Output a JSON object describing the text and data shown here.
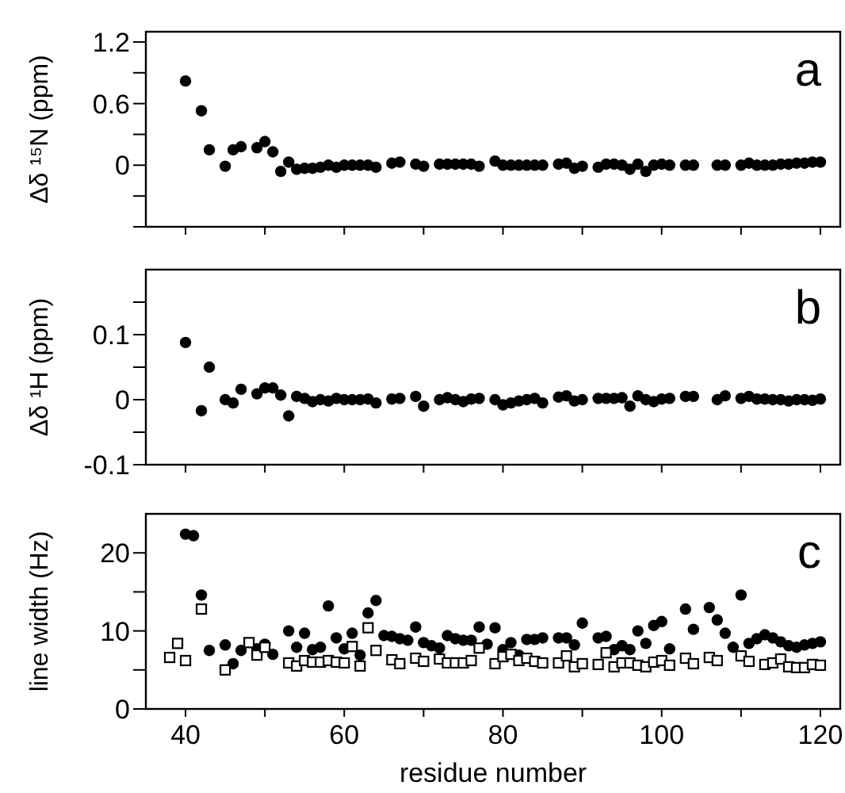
{
  "chart_data": [
    {
      "type": "scatter",
      "ylabel": "Δδ ¹⁵N (ppm)",
      "annotations": [
        "a"
      ],
      "xlim": [
        35,
        122.5
      ],
      "xticks": [
        {
          "value": 40,
          "label": null
        },
        {
          "value": 50,
          "label": null
        },
        {
          "value": 60,
          "label": null
        },
        {
          "value": 70,
          "label": null
        },
        {
          "value": 80,
          "label": null
        },
        {
          "value": 90,
          "label": null
        },
        {
          "value": 100,
          "label": null
        },
        {
          "value": 110,
          "label": null
        },
        {
          "value": 120,
          "label": null
        }
      ],
      "ylim": [
        -0.6,
        1.3
      ],
      "yticks": [
        {
          "value": -0.6,
          "label": null
        },
        {
          "value": -0.3,
          "label": null
        },
        0,
        {
          "value": 0.3,
          "label": null
        },
        0.6,
        {
          "value": 0.9,
          "label": null
        },
        1.2
      ],
      "tick_labels": "y",
      "marker": "circle",
      "series": [
        {
          "color": "#000000",
          "x": [
            40,
            42,
            43,
            45,
            46,
            47,
            49,
            50,
            51,
            52,
            53,
            54,
            55,
            56,
            57,
            58,
            59,
            60,
            61,
            62,
            63,
            64,
            66,
            67,
            69,
            70,
            72,
            73,
            74,
            75,
            76,
            77,
            79,
            80,
            81,
            82,
            83,
            84,
            85,
            87,
            88,
            89,
            90,
            92,
            93,
            94,
            95,
            96,
            97,
            98,
            99,
            100,
            101,
            103,
            104,
            107,
            108,
            110,
            111,
            112,
            113,
            114,
            115,
            116,
            117,
            118,
            119,
            120
          ],
          "values": [
            0.82,
            0.53,
            0.15,
            -0.01,
            0.15,
            0.18,
            0.17,
            0.23,
            0.13,
            -0.06,
            0.03,
            -0.04,
            -0.03,
            -0.03,
            -0.02,
            0,
            -0.02,
            0,
            0,
            0,
            0,
            -0.02,
            0.02,
            0.03,
            0.01,
            -0.01,
            0.01,
            0.01,
            0.01,
            0.01,
            0.01,
            -0.01,
            0.04,
            0,
            0,
            0,
            0,
            0,
            0,
            0.01,
            0.02,
            -0.03,
            -0.01,
            -0.02,
            0.01,
            0.01,
            0,
            -0.04,
            0.01,
            -0.06,
            0,
            0.01,
            0,
            0,
            0,
            0,
            0,
            0,
            0.02,
            0,
            0,
            0,
            0.01,
            0.01,
            0.02,
            0.02,
            0.03,
            0.03
          ]
        }
      ]
    },
    {
      "type": "scatter",
      "ylabel": "Δδ ¹H (ppm)",
      "annotations": [
        "b"
      ],
      "xlim": [
        35,
        122.5
      ],
      "xticks": [
        {
          "value": 40,
          "label": null
        },
        {
          "value": 50,
          "label": null
        },
        {
          "value": 60,
          "label": null
        },
        {
          "value": 70,
          "label": null
        },
        {
          "value": 80,
          "label": null
        },
        {
          "value": 90,
          "label": null
        },
        {
          "value": 100,
          "label": null
        },
        {
          "value": 110,
          "label": null
        },
        {
          "value": 120,
          "label": null
        }
      ],
      "ylim": [
        -0.1,
        0.2
      ],
      "yticks": [
        -0.1,
        {
          "value": -0.05,
          "label": null
        },
        0,
        {
          "value": 0.05,
          "label": null
        },
        0.1,
        {
          "value": 0.15,
          "label": null
        }
      ],
      "tick_labels": "y",
      "marker": "circle",
      "series": [
        {
          "color": "#000000",
          "x": [
            40,
            42,
            43,
            45,
            46,
            47,
            49,
            50,
            51,
            52,
            53,
            54,
            55,
            56,
            57,
            58,
            59,
            60,
            61,
            62,
            63,
            64,
            66,
            67,
            69,
            70,
            72,
            73,
            74,
            75,
            76,
            77,
            79,
            80,
            81,
            82,
            83,
            84,
            85,
            87,
            88,
            89,
            90,
            92,
            93,
            94,
            95,
            96,
            97,
            98,
            99,
            100,
            101,
            103,
            104,
            107,
            108,
            110,
            111,
            112,
            113,
            114,
            115,
            116,
            117,
            118,
            119,
            120
          ],
          "values": [
            0.088,
            -0.017,
            0.05,
            0,
            -0.005,
            0.016,
            0.009,
            0.018,
            0.018,
            0.007,
            -0.025,
            0.005,
            0.002,
            -0.003,
            0,
            -0.002,
            0.002,
            0,
            0,
            0,
            0.001,
            -0.005,
            0.001,
            0.002,
            0.005,
            -0.01,
            0,
            0.003,
            0,
            -0.003,
            0.001,
            0.002,
            0,
            -0.008,
            -0.005,
            -0.002,
            0,
            0.002,
            -0.005,
            0.004,
            0.006,
            -0.002,
            0,
            0.002,
            0.002,
            0.002,
            0.003,
            -0.01,
            0.006,
            0,
            -0.003,
            0.001,
            0.002,
            0.005,
            0.005,
            0,
            0.006,
            0.002,
            0.005,
            0.001,
            0.001,
            0,
            0,
            -0.002,
            0,
            0,
            -0.001,
            0.001
          ]
        }
      ]
    },
    {
      "type": "scatter",
      "xlabel": "residue number",
      "ylabel": "line width (Hz)",
      "annotations": [
        "c"
      ],
      "xlim": [
        35,
        122.5
      ],
      "xticks": [
        40,
        {
          "value": 50,
          "label": null
        },
        60,
        {
          "value": 70,
          "label": null
        },
        80,
        {
          "value": 90,
          "label": null
        },
        100,
        {
          "value": 110,
          "label": null
        },
        120
      ],
      "ylim": [
        0,
        25
      ],
      "yticks": [
        0,
        {
          "value": 5,
          "label": null
        },
        10,
        {
          "value": 15,
          "label": null
        },
        20
      ],
      "series": [
        {
          "color": "#000000",
          "marker": "circle",
          "x": [
            40,
            41,
            42,
            43,
            45,
            46,
            47,
            49,
            50,
            51,
            53,
            54,
            55,
            56,
            57,
            58,
            59,
            60,
            61,
            62,
            63,
            64,
            65,
            66,
            67,
            68,
            69,
            70,
            71,
            72,
            73,
            74,
            75,
            76,
            77,
            78,
            79,
            80,
            81,
            82,
            83,
            84,
            85,
            87,
            88,
            89,
            90,
            92,
            93,
            94,
            95,
            96,
            97,
            98,
            99,
            100,
            101,
            103,
            104,
            106,
            107,
            108,
            109,
            110,
            111,
            112,
            113,
            114,
            115,
            116,
            117,
            118,
            119,
            120
          ],
          "values": [
            22.4,
            22.2,
            14.6,
            7.5,
            8.2,
            5.8,
            7.5,
            7.7,
            8.3,
            7.0,
            10.0,
            7.9,
            9.7,
            7.6,
            7.9,
            13.2,
            9.1,
            7.7,
            9.7,
            6.9,
            12.3,
            13.9,
            9.4,
            9.3,
            9.0,
            8.8,
            10.5,
            8.5,
            8.1,
            7.8,
            9.4,
            9.0,
            8.8,
            8.8,
            10.5,
            8.3,
            10.4,
            7.6,
            8.5,
            6.9,
            8.9,
            8.9,
            9.1,
            9.1,
            9.1,
            8.2,
            11.0,
            9.1,
            9.3,
            7.6,
            8.1,
            7.6,
            10.0,
            8.4,
            10.7,
            11.2,
            7.7,
            12.8,
            10.2,
            13.0,
            11.4,
            9.7,
            7.9,
            14.6,
            8.4,
            9.0,
            9.5,
            9.1,
            8.6,
            8.1,
            7.9,
            8.2,
            8.4,
            8.6
          ]
        },
        {
          "color": "#000000",
          "marker": "square",
          "x": [
            38,
            39,
            40,
            42,
            45,
            48,
            49,
            50,
            53,
            54,
            55,
            56,
            57,
            58,
            59,
            60,
            61,
            62,
            63,
            64,
            66,
            67,
            69,
            70,
            72,
            73,
            74,
            75,
            76,
            77,
            79,
            80,
            81,
            82,
            83,
            84,
            85,
            87,
            88,
            89,
            90,
            92,
            93,
            94,
            95,
            96,
            97,
            98,
            99,
            100,
            101,
            103,
            104,
            106,
            107,
            110,
            111,
            113,
            114,
            115,
            116,
            117,
            118,
            119,
            120
          ],
          "values": [
            6.6,
            8.4,
            6.2,
            12.8,
            5.0,
            8.5,
            6.9,
            7.9,
            5.9,
            5.5,
            6.2,
            6.0,
            6.0,
            6.2,
            6.0,
            5.9,
            8.0,
            5.5,
            10.4,
            7.5,
            6.3,
            5.8,
            6.5,
            6.1,
            6.4,
            5.9,
            5.9,
            5.9,
            6.2,
            7.8,
            5.8,
            6.7,
            7.0,
            6.2,
            6.5,
            6.1,
            5.9,
            5.9,
            6.8,
            5.4,
            5.8,
            5.7,
            7.2,
            5.4,
            5.9,
            5.9,
            5.6,
            5.4,
            6.0,
            6.2,
            5.6,
            6.5,
            5.8,
            6.6,
            6.2,
            6.8,
            6.1,
            5.7,
            5.9,
            6.4,
            5.4,
            5.3,
            5.3,
            5.7,
            5.6
          ]
        }
      ]
    }
  ]
}
